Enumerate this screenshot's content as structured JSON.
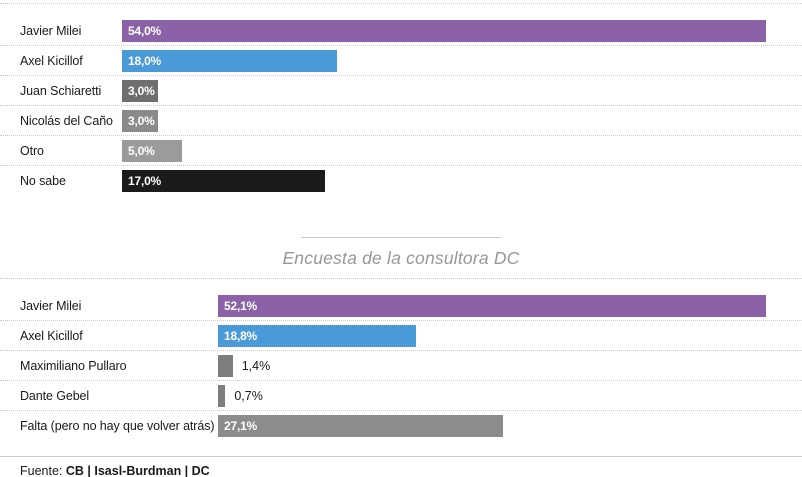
{
  "chart_data": [
    {
      "type": "bar",
      "orientation": "horizontal",
      "title": "",
      "categories": [
        "Javier Milei",
        "Axel Kicillof",
        "Juan Schiaretti",
        "Nicolás del Caño",
        "Otro",
        "No sabe"
      ],
      "values": [
        54.0,
        18.0,
        3.0,
        3.0,
        5.0,
        17.0
      ],
      "value_labels": [
        "54,0%",
        "18,0%",
        "3,0%",
        "3,0%",
        "5,0%",
        "17,0%"
      ],
      "bar_colors": [
        "#8b62a8",
        "#4a9ad8",
        "#6f6f6f",
        "#8a8a8a",
        "#9b9b9b",
        "#1b1b1b"
      ],
      "value_label_position": [
        "inside",
        "inside",
        "inside",
        "inside",
        "inside",
        "inside"
      ],
      "xlim": [
        0,
        54.0
      ],
      "unit": "%",
      "grid": "off",
      "legend": "none"
    },
    {
      "type": "bar",
      "orientation": "horizontal",
      "title": "Encuesta de la consultora DC",
      "categories": [
        "Javier Milei",
        "Axel Kicillof",
        "Maximiliano Pullaro",
        "Dante Gebel",
        "Falta (pero no hay que volver atrás)"
      ],
      "values": [
        52.1,
        18.8,
        1.4,
        0.7,
        27.1
      ],
      "value_labels": [
        "52,1%",
        "18,8%",
        "1,4%",
        "0,7%",
        "27,1%"
      ],
      "bar_colors": [
        "#8b62a8",
        "#4a9ad8",
        "#7d7d7d",
        "#7d7d7d",
        "#8c8c8c"
      ],
      "value_label_position": [
        "inside",
        "inside",
        "outside",
        "outside",
        "inside"
      ],
      "xlim": [
        0,
        52.1
      ],
      "unit": "%",
      "grid": "off",
      "legend": "none"
    }
  ],
  "footer": {
    "prefix": "Fuente: ",
    "source_bold": "CB | Isasl-Burdman | DC"
  }
}
